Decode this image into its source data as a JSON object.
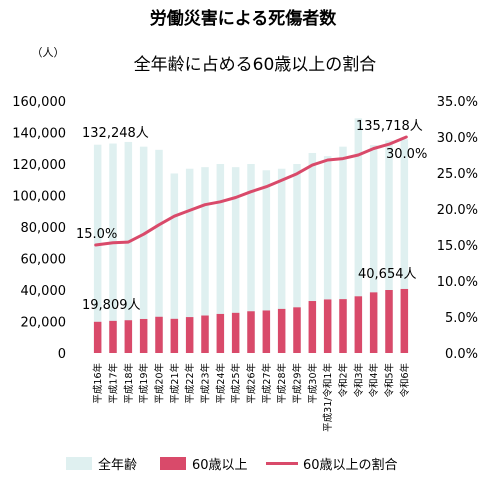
{
  "chart_data": {
    "type": "bar",
    "title": "労働災害による死傷者数",
    "subtitle": "全年齢に占める60歳以上の割合",
    "y_unit_left": "（人）",
    "ylim_left": [
      0,
      160000
    ],
    "yticks_left": [
      "0",
      "20,000",
      "40,000",
      "60,000",
      "80,000",
      "100,000",
      "120,000",
      "140,000",
      "160,000"
    ],
    "ylim_right": [
      0,
      35
    ],
    "yticks_right": [
      "0.0%",
      "5.0%",
      "10.0%",
      "15.0%",
      "20.0%",
      "25.0%",
      "30.0%",
      "35.0%"
    ],
    "categories": [
      "平成16年",
      "平成17年",
      "平成18年",
      "平成19年",
      "平成20年",
      "平成21年",
      "平成22年",
      "平成23年",
      "平成24年",
      "平成25年",
      "平成26年",
      "平成27年",
      "平成28年",
      "平成29年",
      "平成30年",
      "平成31/令和1年",
      "令和2年",
      "令和3年",
      "令和4年",
      "令和5年",
      "令和6年"
    ],
    "series": [
      {
        "name": "全年齢",
        "type": "bar",
        "axis": "left",
        "color": "#dff0f0",
        "values": [
          132248,
          133000,
          134000,
          131000,
          129000,
          114000,
          117000,
          118000,
          120000,
          118000,
          120000,
          116000,
          117000,
          120000,
          127000,
          125000,
          131000,
          149000,
          132000,
          135000,
          135718
        ]
      },
      {
        "name": "60歳以上",
        "type": "bar",
        "axis": "left",
        "color": "#d94a6a",
        "values": [
          19809,
          20400,
          20800,
          21600,
          23000,
          21700,
          22800,
          23800,
          24800,
          25500,
          26500,
          27000,
          28000,
          29000,
          33000,
          34000,
          34200,
          36000,
          38500,
          40000,
          40654
        ]
      },
      {
        "name": "60歳以上の割合",
        "type": "line",
        "axis": "right",
        "color": "#d94a6a",
        "values": [
          15.0,
          15.3,
          15.4,
          16.5,
          17.8,
          19.0,
          19.8,
          20.6,
          21.0,
          21.6,
          22.4,
          23.1,
          24.0,
          24.9,
          26.1,
          26.8,
          27.0,
          27.5,
          28.4,
          29.0,
          30.0
        ]
      }
    ],
    "annotations": {
      "first_total": "132,248人",
      "last_total": "135,718人",
      "first_senior": "19,809人",
      "last_senior": "40,654人",
      "first_ratio": "15.0%",
      "last_ratio": "30.0%"
    },
    "legend_position": "bottom",
    "grid": false
  }
}
